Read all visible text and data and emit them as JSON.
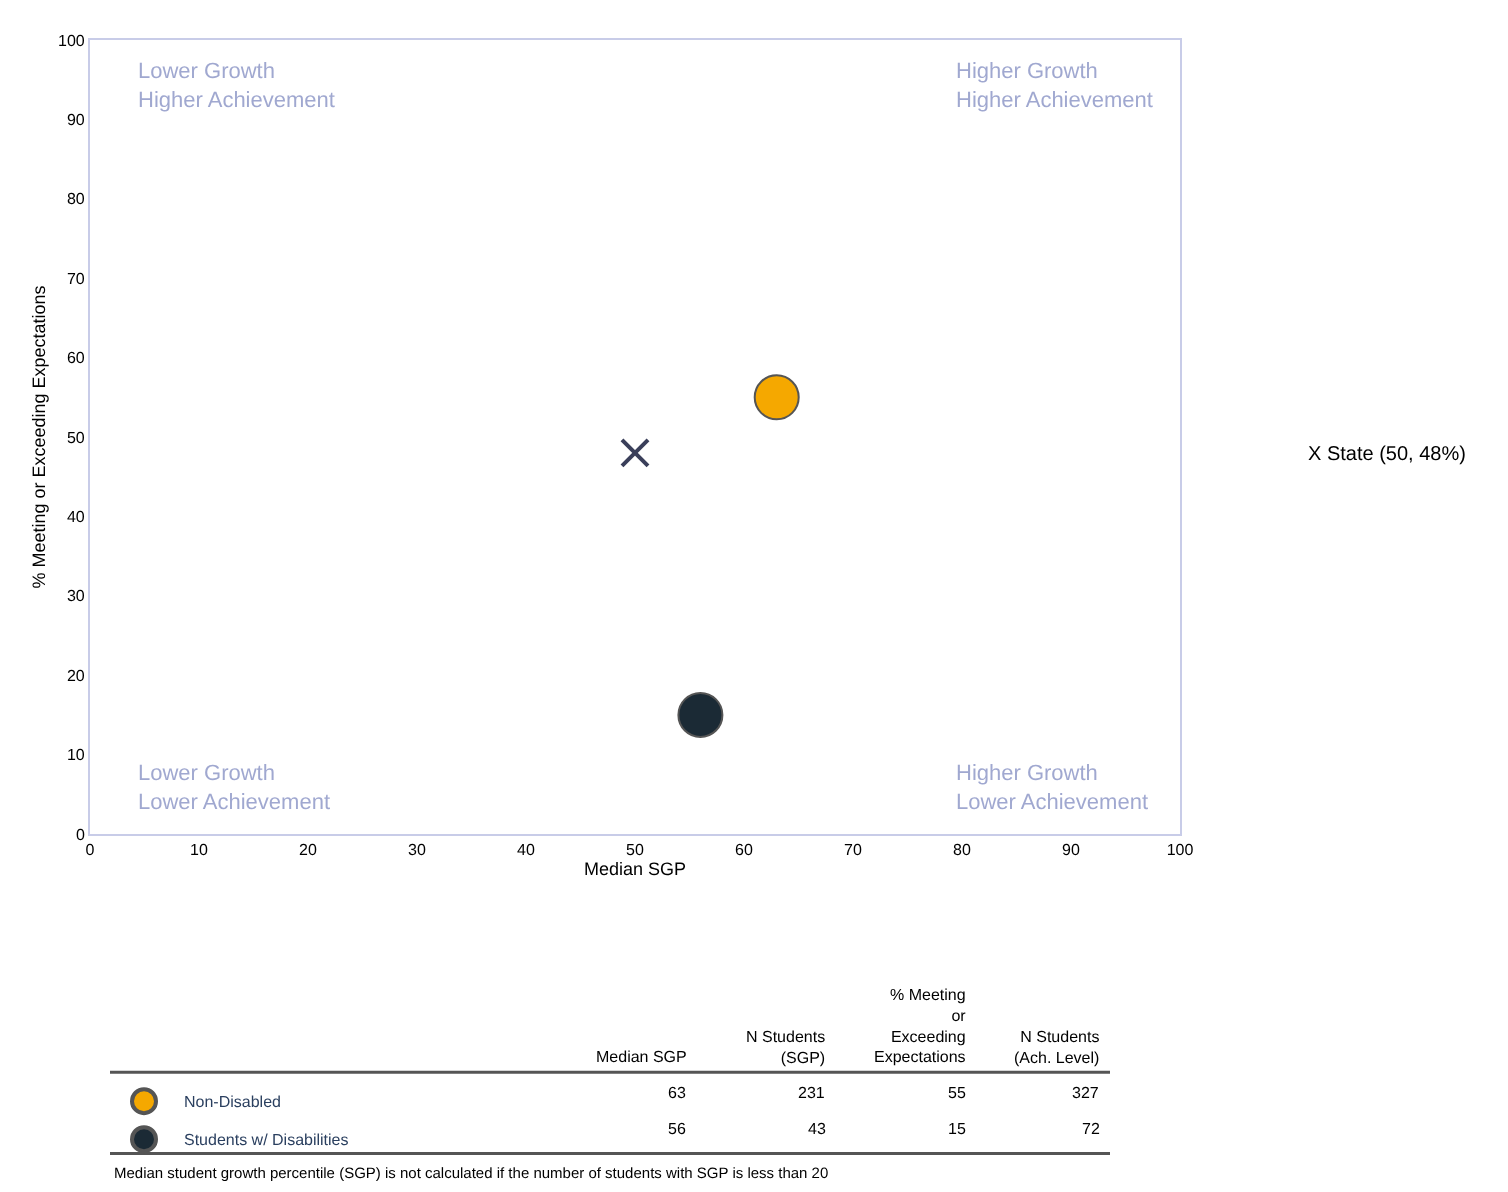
{
  "chart_data": {
    "type": "scatter",
    "xlabel": "Median SGP",
    "ylabel": "% Meeting or Exceeding Expectations",
    "series": [
      {
        "name": "Non-Disabled",
        "color": "#f5a800",
        "x": [
          63
        ],
        "values": [
          55
        ],
        "marker": "circle"
      },
      {
        "name": "Students w/ Disabilities",
        "color": "#1b2a35",
        "x": [
          56
        ],
        "values": [
          15
        ],
        "marker": "circle"
      },
      {
        "color": "#3a3f5a",
        "x": [
          50
        ],
        "values": [
          48
        ],
        "marker": "cross"
      }
    ],
    "xlim": [
      0,
      100
    ],
    "xticks": [
      0,
      10,
      20,
      30,
      40,
      50,
      60,
      70,
      80,
      90,
      100
    ],
    "ylim": [
      0,
      100
    ],
    "yticks": [
      0,
      10,
      20,
      30,
      40,
      50,
      60,
      70,
      80,
      90,
      100
    ],
    "legend": "bottom left",
    "annotations": [
      "Lower Growth\nHigher Achievement",
      "Higher Growth\nHigher Achievement",
      "Lower Growth\nLower Achievement",
      "Higher Growth\nLower Achievement",
      "Median SGP",
      "N Students\n(SGP)",
      "% Meeting\nor\nExceeding\nExpectations",
      "N Students\n(Ach. Level)",
      "63",
      "231",
      "55",
      "327",
      "56",
      "43",
      "15",
      "72",
      "Median student growth percentile (SGP) is not calculated if the number of students with SGP is less than 20",
      "X State (50, 48%)"
    ]
  }
}
